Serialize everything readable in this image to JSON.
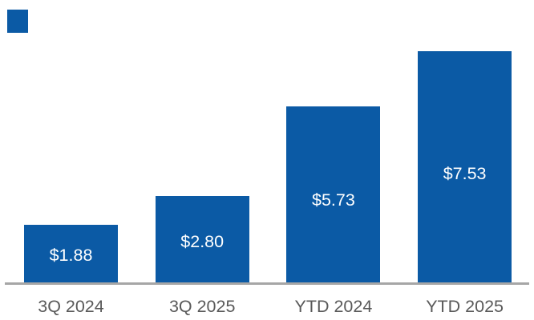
{
  "chart_data": {
    "type": "bar",
    "categories": [
      "3Q 2024",
      "3Q 2025",
      "YTD 2024",
      "YTD 2025"
    ],
    "values": [
      1.88,
      2.8,
      5.73,
      7.53
    ],
    "value_labels": [
      "$1.88",
      "$2.80",
      "$5.73",
      "$7.53"
    ],
    "title": "",
    "xlabel": "",
    "ylabel": "",
    "ylim": [
      0,
      9.2
    ],
    "grid": false,
    "legend": "none",
    "value_labels_position": "inside-center",
    "bar_color": "#0b5aa5",
    "value_label_color": "#ffffff",
    "category_label_color": "#595959",
    "axis_line_color": "#a6a6a6"
  },
  "decor": {
    "corner_swatch_color": "#0b5aa5"
  }
}
